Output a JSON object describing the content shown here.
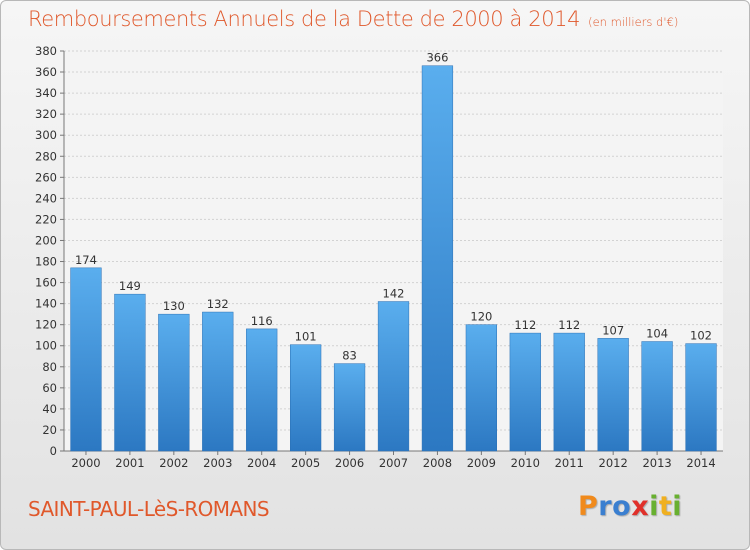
{
  "chart_data": {
    "type": "bar",
    "title": "Remboursements Annuels de la Dette de 2000 à 2014",
    "subtitle": "(en milliers d'€)",
    "categories": [
      "2000",
      "2001",
      "2002",
      "2003",
      "2004",
      "2005",
      "2006",
      "2007",
      "2008",
      "2009",
      "2010",
      "2011",
      "2012",
      "2013",
      "2014"
    ],
    "values": [
      174,
      149,
      130,
      132,
      116,
      101,
      83,
      142,
      366,
      120,
      112,
      112,
      107,
      104,
      102
    ],
    "ylim": [
      0,
      380
    ],
    "yticks": [
      0,
      20,
      40,
      60,
      80,
      100,
      120,
      140,
      160,
      180,
      200,
      220,
      240,
      260,
      280,
      300,
      320,
      340,
      360,
      380
    ],
    "grid": true,
    "bar_color": "#4a9be0"
  },
  "commune": "SAINT-PAUL-LèS-ROMANS",
  "logo": {
    "letters": [
      "P",
      "r",
      "o",
      "x",
      "i",
      "t",
      "i"
    ],
    "colors": [
      "#f08a1c",
      "#3a7fd0",
      "#3a7fd0",
      "#e0302a",
      "#68b030",
      "#f0b020",
      "#68b030"
    ]
  }
}
